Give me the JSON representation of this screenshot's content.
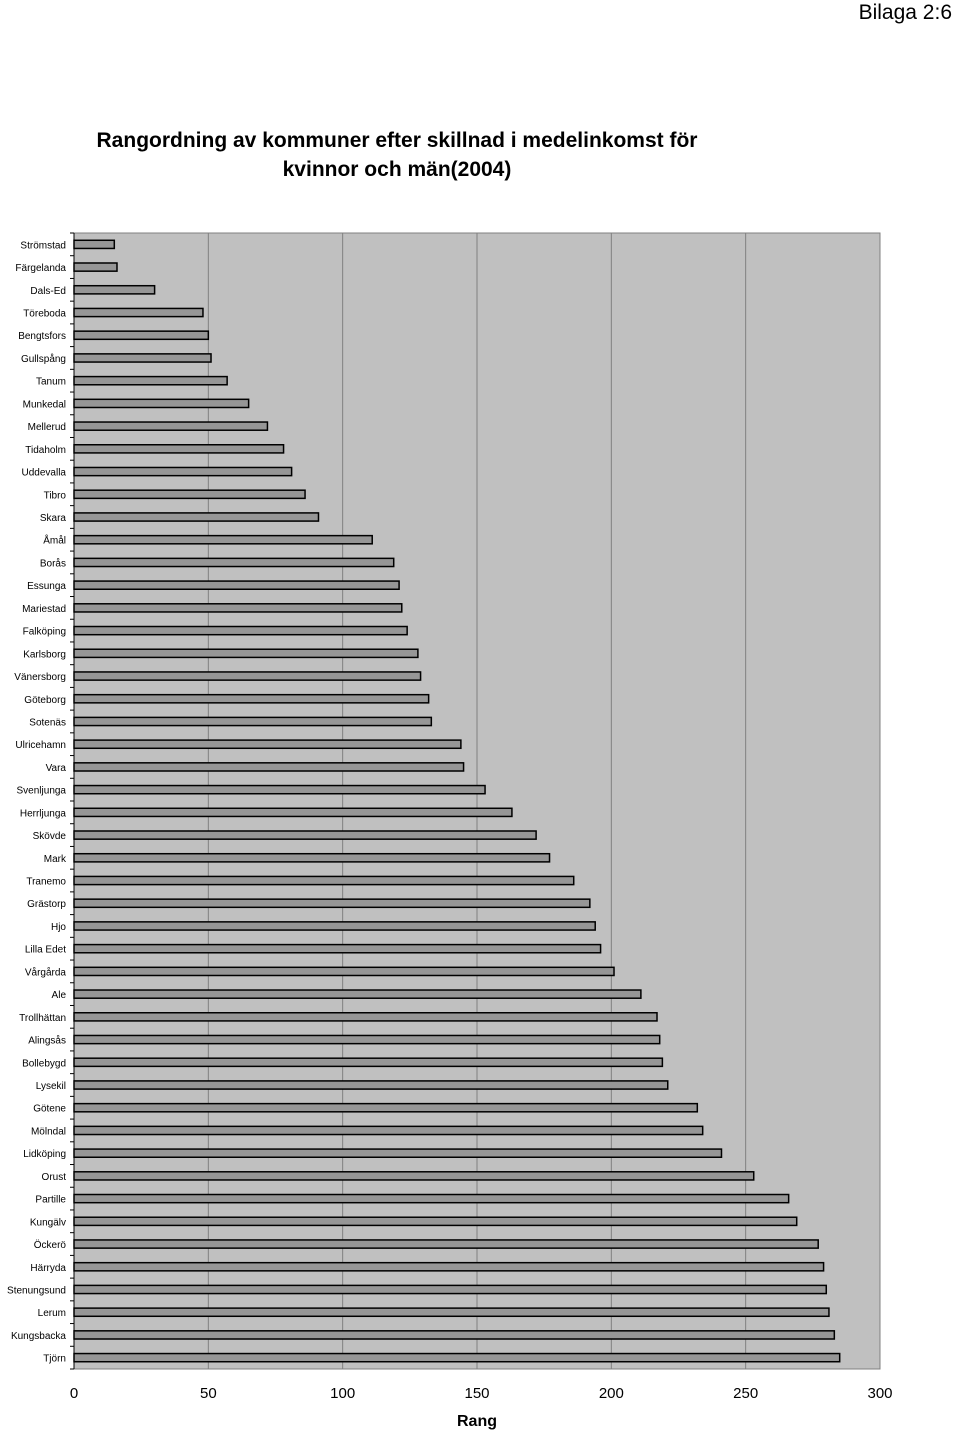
{
  "header": {
    "label": "Bilaga 2:6"
  },
  "chart_data": {
    "type": "bar",
    "orientation": "horizontal",
    "title": "Rangordning av kommuner efter skillnad i medelinkomst för kvinnor och män(2004)",
    "xlabel": "Rang",
    "ylabel": "",
    "xlim": [
      0,
      300
    ],
    "xticks": [
      0,
      50,
      100,
      150,
      200,
      250,
      300
    ],
    "grid": true,
    "colors": {
      "plot_bg": "#c0c0c0",
      "bar_fill": "#969696",
      "bar_stroke": "#000000",
      "gridline": "#808080"
    },
    "categories": [
      "Strömstad",
      "Färgelanda",
      "Dals-Ed",
      "Töreboda",
      "Bengtsfors",
      "Gullspång",
      "Tanum",
      "Munkedal",
      "Mellerud",
      "Tidaholm",
      "Uddevalla",
      "Tibro",
      "Skara",
      "Åmål",
      "Borås",
      "Essunga",
      "Mariestad",
      "Falköping",
      "Karlsborg",
      "Vänersborg",
      "Göteborg",
      "Sotenäs",
      "Ulricehamn",
      "Vara",
      "Svenljunga",
      "Herrljunga",
      "Skövde",
      "Mark",
      "Tranemo",
      "Grästorp",
      "Hjo",
      "Lilla Edet",
      "Vårgårda",
      "Ale",
      "Trollhättan",
      "Alingsås",
      "Bollebygd",
      "Lysekil",
      "Götene",
      "Mölndal",
      "Lidköping",
      "Orust",
      "Partille",
      "Kungälv",
      "Öckerö",
      "Härryda",
      "Stenungsund",
      "Lerum",
      "Kungsbacka",
      "Tjörn"
    ],
    "values": [
      15,
      16,
      30,
      48,
      50,
      51,
      57,
      65,
      72,
      78,
      81,
      86,
      91,
      111,
      119,
      121,
      122,
      124,
      128,
      129,
      132,
      133,
      144,
      145,
      153,
      163,
      172,
      177,
      186,
      192,
      194,
      196,
      201,
      211,
      217,
      218,
      219,
      221,
      232,
      234,
      241,
      253,
      266,
      269,
      277,
      279,
      280,
      281,
      283,
      285
    ]
  }
}
